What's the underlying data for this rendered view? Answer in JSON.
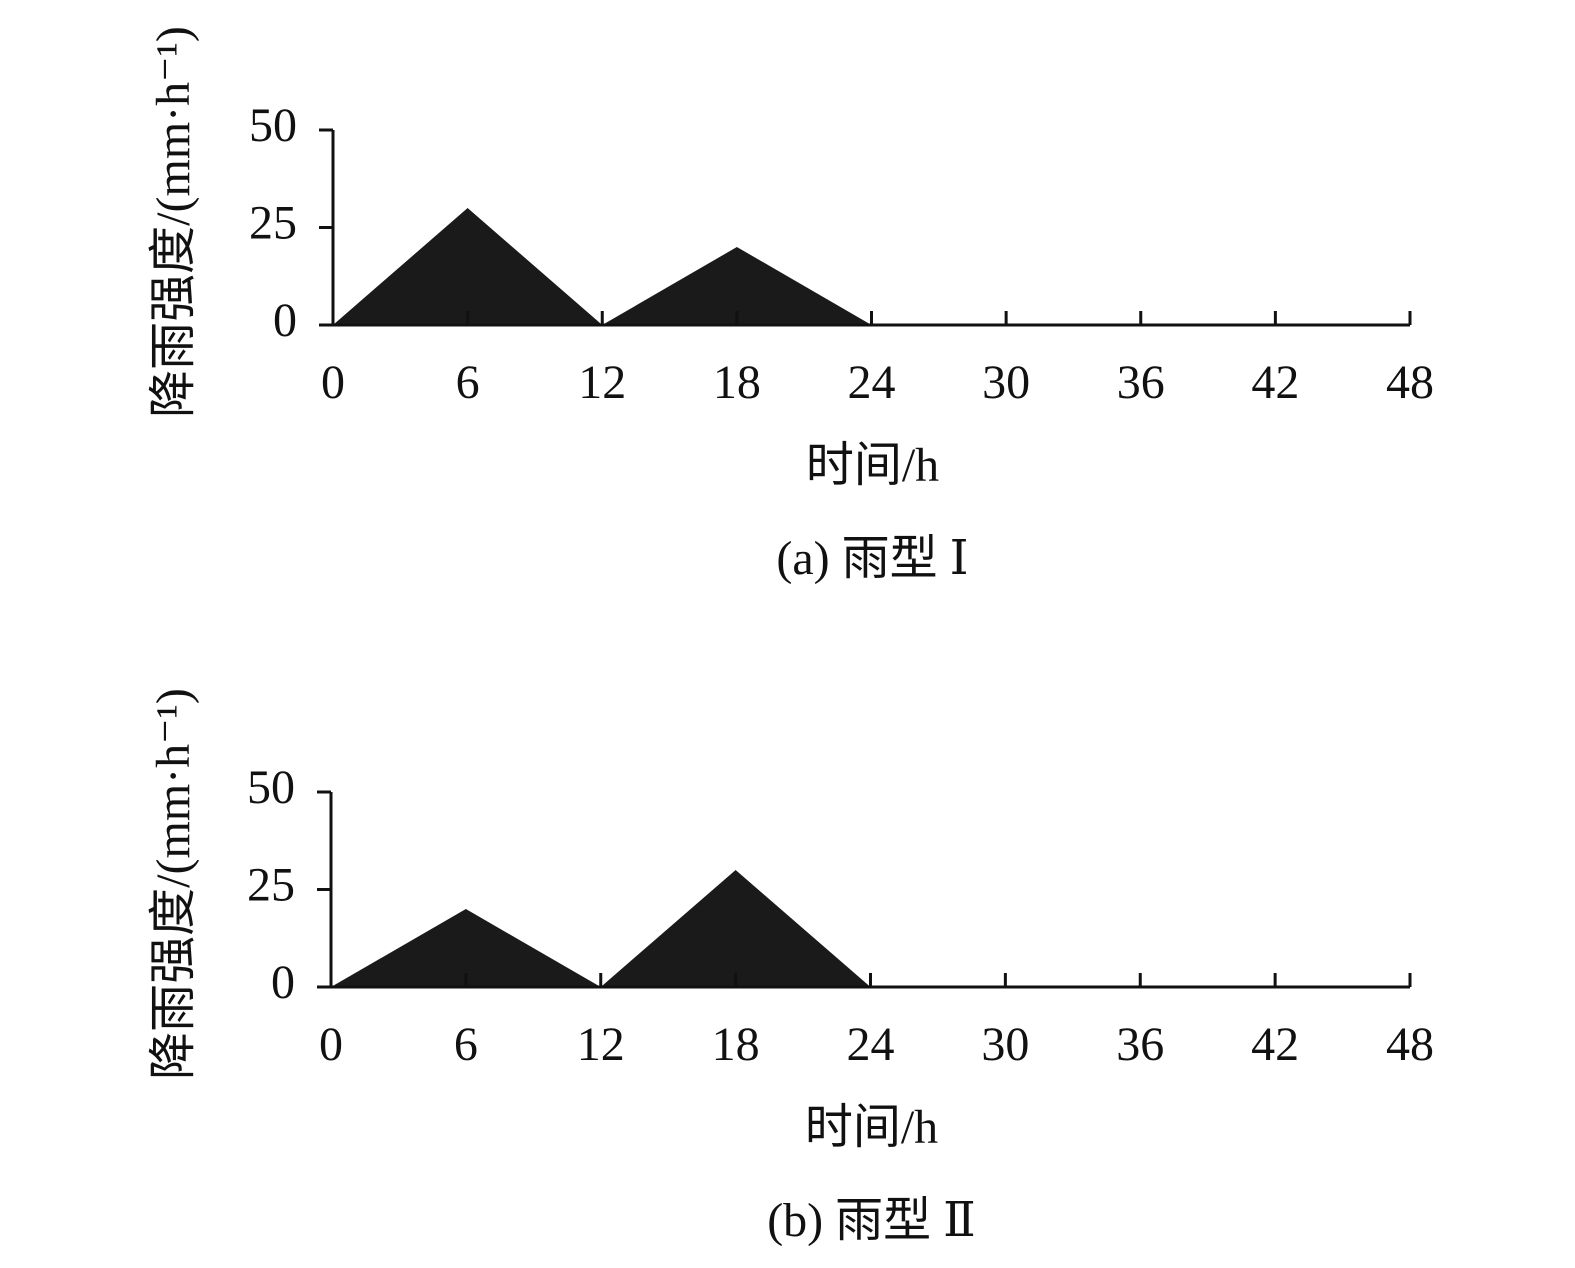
{
  "chart_data": [
    {
      "type": "area",
      "caption": "(a) 雨型 Ⅰ",
      "xlabel": "时间/h",
      "ylabel": "降雨强度/(mm·h⁻¹)",
      "x": [
        0,
        6,
        12,
        18,
        24
      ],
      "values": [
        0,
        30,
        0,
        20,
        0
      ],
      "color": "#1a1a1a",
      "xlim": [
        0,
        48
      ],
      "xticks": [
        0,
        6,
        12,
        18,
        24,
        30,
        36,
        42,
        48
      ],
      "ylim": [
        0,
        50
      ],
      "yticks": [
        0,
        25,
        50
      ]
    },
    {
      "type": "area",
      "caption": "(b) 雨型 Ⅱ",
      "xlabel": "时间/h",
      "ylabel": "降雨强度/(mm·h⁻¹)",
      "x": [
        0,
        6,
        12,
        18,
        24
      ],
      "values": [
        0,
        20,
        0,
        30,
        0
      ],
      "color": "#1a1a1a",
      "xlim": [
        0,
        48
      ],
      "xticks": [
        0,
        6,
        12,
        18,
        24,
        30,
        36,
        42,
        48
      ],
      "ylim": [
        0,
        50
      ],
      "yticks": [
        0,
        25,
        50
      ]
    }
  ]
}
